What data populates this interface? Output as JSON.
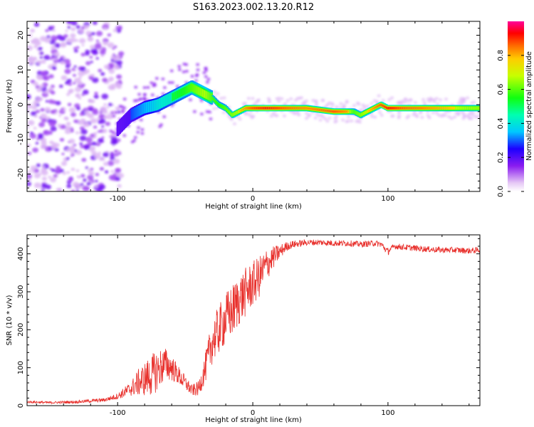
{
  "title": "S163.2023.002.13.20.R12",
  "chart_data": [
    {
      "type": "heatmap",
      "xlabel": "Height of straight line (km)",
      "ylabel": "Frequency (Hz)",
      "xlim": [
        -167,
        168
      ],
      "ylim": [
        -25,
        24
      ],
      "xticks": [
        -100,
        0,
        100
      ],
      "yticks": [
        -20,
        -10,
        0,
        10,
        20
      ],
      "colorbar": {
        "label": "Normalized spectral amplitude",
        "range": [
          0,
          1
        ],
        "ticks": [
          "0.0",
          "0.2",
          "0.4",
          "0.6",
          "0.8"
        ],
        "tick_values": [
          0.0,
          0.2,
          0.4,
          0.6,
          0.8
        ]
      },
      "ridge": {
        "x": [
          -100,
          -90,
          -80,
          -70,
          -60,
          -50,
          -45,
          -40,
          -35,
          -30,
          -25,
          -20,
          -15,
          -10,
          -5,
          0,
          10,
          20,
          40,
          60,
          70,
          75,
          80,
          85,
          90,
          95,
          100,
          110,
          130,
          150,
          168
        ],
        "y": [
          -7,
          -3,
          -1,
          0,
          2,
          4,
          5,
          4,
          3,
          2,
          0,
          -1,
          -3,
          -2,
          -1,
          -1,
          -1,
          -1,
          -1,
          -2,
          -2,
          -2,
          -3,
          -2,
          -1,
          0,
          -1,
          -1,
          -1,
          -1,
          -1
        ],
        "amplitude": [
          0.3,
          0.35,
          0.45,
          0.55,
          0.6,
          0.65,
          0.7,
          0.75,
          0.8,
          0.7,
          0.65,
          0.7,
          0.75,
          0.8,
          0.85,
          0.9,
          0.95,
          0.9,
          0.85,
          0.9,
          0.85,
          0.7,
          0.75,
          0.8,
          0.85,
          0.9,
          0.95,
          0.9,
          0.85,
          0.8,
          0.75
        ]
      }
    },
    {
      "type": "line",
      "xlabel": "Height of straight line (km)",
      "ylabel": "SNR (10 * v/v)",
      "xlim": [
        -167,
        168
      ],
      "ylim": [
        0,
        450
      ],
      "xticks": [
        -100,
        0,
        100
      ],
      "yticks": [
        0,
        100,
        200,
        300,
        400
      ],
      "color": "#e8302c",
      "series": [
        {
          "x": [
            -167,
            -150,
            -130,
            -110,
            -100,
            -90,
            -85,
            -80,
            -75,
            -70,
            -65,
            -60,
            -55,
            -50,
            -45,
            -40,
            -35,
            -30,
            -25,
            -20,
            -15,
            -10,
            -5,
            0,
            5,
            10,
            15,
            20,
            25,
            30,
            40,
            50,
            60,
            70,
            80,
            90,
            95,
            100,
            101,
            105,
            110,
            120,
            130,
            140,
            150,
            160,
            168
          ],
          "y": [
            10,
            8,
            10,
            15,
            25,
            45,
            60,
            70,
            80,
            95,
            110,
            100,
            80,
            60,
            40,
            45,
            100,
            170,
            200,
            230,
            250,
            280,
            300,
            320,
            340,
            370,
            390,
            405,
            420,
            425,
            430,
            430,
            428,
            428,
            425,
            428,
            425,
            405,
            410,
            420,
            418,
            415,
            412,
            410,
            410,
            408,
            410
          ],
          "noise": [
            3,
            3,
            4,
            5,
            8,
            20,
            35,
            45,
            55,
            55,
            45,
            35,
            25,
            20,
            15,
            20,
            40,
            60,
            65,
            70,
            70,
            70,
            65,
            60,
            55,
            45,
            30,
            20,
            12,
            10,
            8,
            8,
            8,
            8,
            8,
            8,
            8,
            10,
            8,
            8,
            8,
            8,
            8,
            8,
            8,
            8,
            8
          ]
        }
      ]
    }
  ]
}
